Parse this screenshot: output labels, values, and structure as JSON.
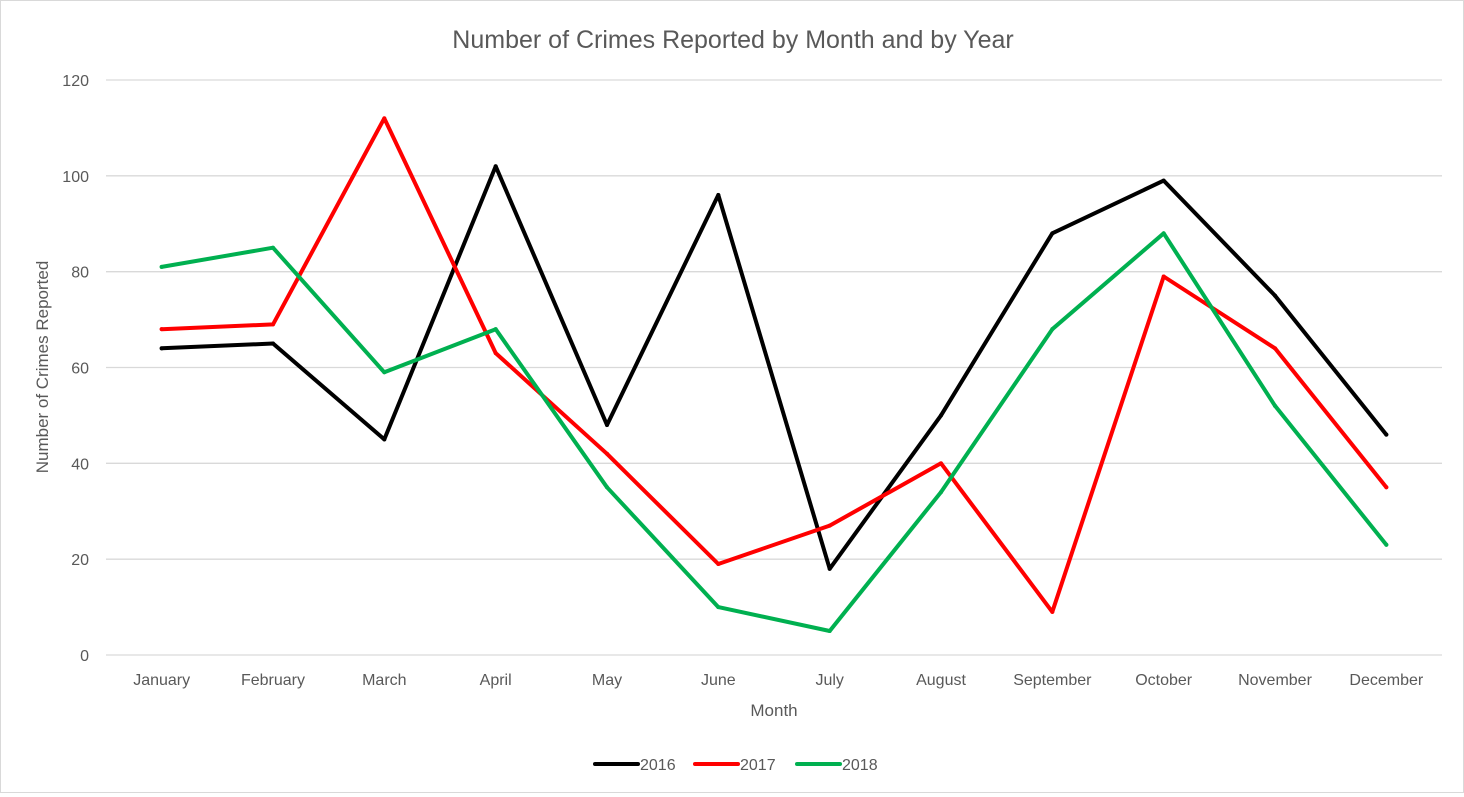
{
  "chart_data": {
    "type": "line",
    "title": "Number of Crimes Reported by Month and by Year",
    "xlabel": "Month",
    "ylabel": "Number of Crimes Reported",
    "categories": [
      "January",
      "February",
      "March",
      "April",
      "May",
      "June",
      "July",
      "August",
      "September",
      "October",
      "November",
      "December"
    ],
    "ylim": [
      0,
      120
    ],
    "yticks": [
      0,
      20,
      40,
      60,
      80,
      100,
      120
    ],
    "grid": true,
    "legend_position": "bottom",
    "series": [
      {
        "name": "2016",
        "color": "#000000",
        "values": [
          64,
          65,
          45,
          102,
          48,
          96,
          18,
          50,
          88,
          99,
          75,
          46
        ]
      },
      {
        "name": "2017",
        "color": "#ff0000",
        "values": [
          68,
          69,
          112,
          63,
          42,
          19,
          27,
          40,
          9,
          79,
          64,
          35
        ]
      },
      {
        "name": "2018",
        "color": "#00b050",
        "values": [
          81,
          85,
          59,
          68,
          35,
          10,
          5,
          34,
          68,
          88,
          52,
          23
        ]
      }
    ]
  }
}
